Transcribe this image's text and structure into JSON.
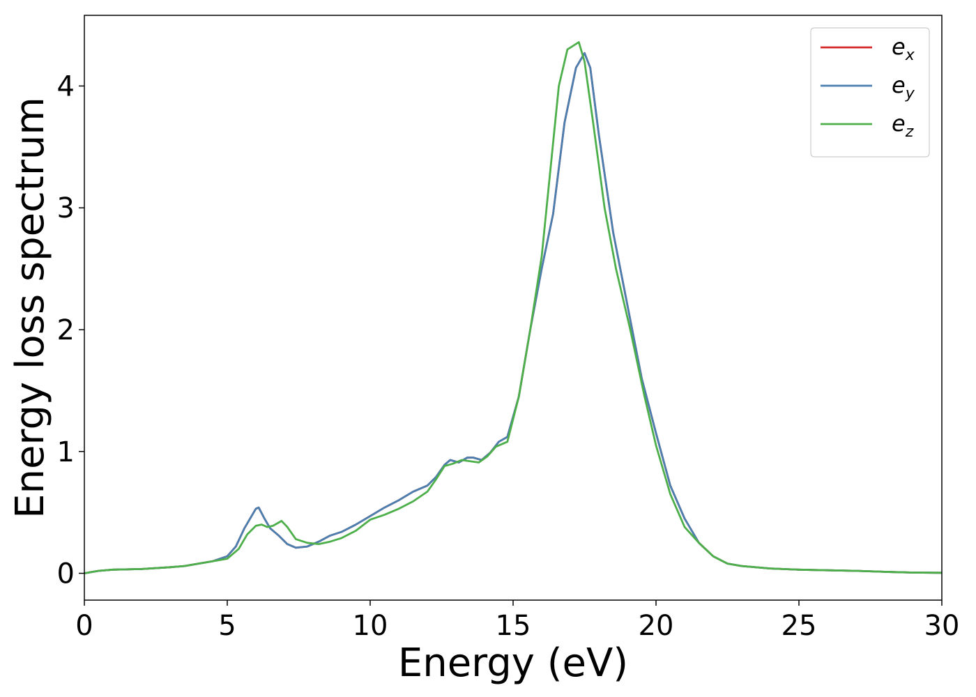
{
  "chart_data": {
    "type": "line",
    "xlabel": "Energy (eV)",
    "ylabel": "Energy loss spectrum",
    "xlim": [
      0,
      30
    ],
    "ylim": [
      -0.22,
      4.58
    ],
    "xticks": [
      0,
      5,
      10,
      15,
      20,
      25,
      30
    ],
    "yticks": [
      0,
      1,
      2,
      3,
      4
    ],
    "grid": false,
    "legend": "top-right",
    "series": [
      {
        "name": "e_x",
        "label_base": "e",
        "label_sub": "x",
        "color": "#d62728",
        "points": [
          [
            0,
            0
          ],
          [
            0.5,
            0.02
          ],
          [
            1,
            0.03
          ],
          [
            2,
            0.035
          ],
          [
            3,
            0.05
          ],
          [
            3.5,
            0.06
          ],
          [
            4,
            0.08
          ],
          [
            4.5,
            0.1
          ],
          [
            5,
            0.14
          ],
          [
            5.3,
            0.22
          ],
          [
            5.6,
            0.37
          ],
          [
            6.0,
            0.53
          ],
          [
            6.1,
            0.54
          ],
          [
            6.3,
            0.45
          ],
          [
            6.5,
            0.37
          ],
          [
            6.8,
            0.31
          ],
          [
            7.1,
            0.24
          ],
          [
            7.4,
            0.21
          ],
          [
            7.8,
            0.22
          ],
          [
            8.2,
            0.26
          ],
          [
            8.6,
            0.31
          ],
          [
            9.0,
            0.34
          ],
          [
            9.5,
            0.4
          ],
          [
            10,
            0.47
          ],
          [
            10.5,
            0.54
          ],
          [
            11,
            0.6
          ],
          [
            11.5,
            0.67
          ],
          [
            12,
            0.72
          ],
          [
            12.3,
            0.79
          ],
          [
            12.6,
            0.89
          ],
          [
            12.8,
            0.93
          ],
          [
            13.1,
            0.91
          ],
          [
            13.4,
            0.95
          ],
          [
            13.6,
            0.95
          ],
          [
            13.9,
            0.93
          ],
          [
            14.2,
            0.99
          ],
          [
            14.5,
            1.08
          ],
          [
            14.8,
            1.12
          ],
          [
            15.2,
            1.45
          ],
          [
            15.6,
            2.0
          ],
          [
            16.0,
            2.5
          ],
          [
            16.4,
            2.95
          ],
          [
            16.8,
            3.7
          ],
          [
            17.2,
            4.15
          ],
          [
            17.5,
            4.27
          ],
          [
            17.7,
            4.15
          ],
          [
            18.0,
            3.6
          ],
          [
            18.5,
            2.8
          ],
          [
            19.0,
            2.2
          ],
          [
            19.5,
            1.6
          ],
          [
            20.0,
            1.15
          ],
          [
            20.5,
            0.72
          ],
          [
            21.0,
            0.45
          ],
          [
            21.5,
            0.25
          ],
          [
            22.0,
            0.14
          ],
          [
            22.5,
            0.08
          ],
          [
            23,
            0.06
          ],
          [
            24,
            0.04
          ],
          [
            25,
            0.03
          ],
          [
            26,
            0.025
          ],
          [
            27,
            0.02
          ],
          [
            28,
            0.012
          ],
          [
            29,
            0.006
          ],
          [
            30,
            0.004
          ]
        ]
      },
      {
        "name": "e_y",
        "label_base": "e",
        "label_sub": "y",
        "color": "#4a7fb0",
        "points": [
          [
            0,
            0
          ],
          [
            0.5,
            0.02
          ],
          [
            1,
            0.03
          ],
          [
            2,
            0.035
          ],
          [
            3,
            0.05
          ],
          [
            3.5,
            0.06
          ],
          [
            4,
            0.08
          ],
          [
            4.5,
            0.1
          ],
          [
            5,
            0.14
          ],
          [
            5.3,
            0.22
          ],
          [
            5.6,
            0.37
          ],
          [
            6.0,
            0.53
          ],
          [
            6.1,
            0.54
          ],
          [
            6.3,
            0.45
          ],
          [
            6.5,
            0.37
          ],
          [
            6.8,
            0.31
          ],
          [
            7.1,
            0.24
          ],
          [
            7.4,
            0.21
          ],
          [
            7.8,
            0.22
          ],
          [
            8.2,
            0.26
          ],
          [
            8.6,
            0.31
          ],
          [
            9.0,
            0.34
          ],
          [
            9.5,
            0.4
          ],
          [
            10,
            0.47
          ],
          [
            10.5,
            0.54
          ],
          [
            11,
            0.6
          ],
          [
            11.5,
            0.67
          ],
          [
            12,
            0.72
          ],
          [
            12.3,
            0.79
          ],
          [
            12.6,
            0.89
          ],
          [
            12.8,
            0.93
          ],
          [
            13.1,
            0.91
          ],
          [
            13.4,
            0.95
          ],
          [
            13.6,
            0.95
          ],
          [
            13.9,
            0.93
          ],
          [
            14.2,
            0.99
          ],
          [
            14.5,
            1.08
          ],
          [
            14.8,
            1.12
          ],
          [
            15.2,
            1.45
          ],
          [
            15.6,
            2.0
          ],
          [
            16.0,
            2.5
          ],
          [
            16.4,
            2.95
          ],
          [
            16.8,
            3.7
          ],
          [
            17.2,
            4.15
          ],
          [
            17.5,
            4.27
          ],
          [
            17.7,
            4.15
          ],
          [
            18.0,
            3.6
          ],
          [
            18.5,
            2.8
          ],
          [
            19.0,
            2.2
          ],
          [
            19.5,
            1.6
          ],
          [
            20.0,
            1.15
          ],
          [
            20.5,
            0.72
          ],
          [
            21.0,
            0.45
          ],
          [
            21.5,
            0.25
          ],
          [
            22.0,
            0.14
          ],
          [
            22.5,
            0.08
          ],
          [
            23,
            0.06
          ],
          [
            24,
            0.04
          ],
          [
            25,
            0.03
          ],
          [
            26,
            0.025
          ],
          [
            27,
            0.02
          ],
          [
            28,
            0.012
          ],
          [
            29,
            0.006
          ],
          [
            30,
            0.004
          ]
        ]
      },
      {
        "name": "e_z",
        "label_base": "e",
        "label_sub": "z",
        "color": "#4daf4a",
        "points": [
          [
            0,
            0
          ],
          [
            0.5,
            0.02
          ],
          [
            1,
            0.03
          ],
          [
            2,
            0.035
          ],
          [
            3,
            0.05
          ],
          [
            3.5,
            0.06
          ],
          [
            4,
            0.08
          ],
          [
            4.5,
            0.1
          ],
          [
            5,
            0.12
          ],
          [
            5.4,
            0.2
          ],
          [
            5.7,
            0.32
          ],
          [
            6.0,
            0.39
          ],
          [
            6.2,
            0.4
          ],
          [
            6.4,
            0.38
          ],
          [
            6.6,
            0.39
          ],
          [
            6.9,
            0.43
          ],
          [
            7.1,
            0.38
          ],
          [
            7.4,
            0.28
          ],
          [
            7.8,
            0.25
          ],
          [
            8.2,
            0.24
          ],
          [
            8.6,
            0.26
          ],
          [
            9.0,
            0.29
          ],
          [
            9.5,
            0.35
          ],
          [
            10,
            0.44
          ],
          [
            10.5,
            0.48
          ],
          [
            11,
            0.53
          ],
          [
            11.5,
            0.59
          ],
          [
            12,
            0.67
          ],
          [
            12.3,
            0.77
          ],
          [
            12.6,
            0.88
          ],
          [
            12.9,
            0.9
          ],
          [
            13.2,
            0.93
          ],
          [
            13.5,
            0.92
          ],
          [
            13.8,
            0.91
          ],
          [
            14.1,
            0.96
          ],
          [
            14.4,
            1.04
          ],
          [
            14.8,
            1.08
          ],
          [
            15.2,
            1.45
          ],
          [
            15.6,
            2.0
          ],
          [
            16.0,
            2.6
          ],
          [
            16.3,
            3.3
          ],
          [
            16.6,
            4.0
          ],
          [
            16.9,
            4.3
          ],
          [
            17.3,
            4.36
          ],
          [
            17.5,
            4.2
          ],
          [
            17.8,
            3.7
          ],
          [
            18.2,
            3.0
          ],
          [
            18.6,
            2.5
          ],
          [
            19.1,
            2.0
          ],
          [
            19.6,
            1.45
          ],
          [
            20.0,
            1.05
          ],
          [
            20.5,
            0.65
          ],
          [
            21.0,
            0.38
          ],
          [
            21.5,
            0.25
          ],
          [
            22.0,
            0.14
          ],
          [
            22.5,
            0.08
          ],
          [
            23,
            0.06
          ],
          [
            24,
            0.04
          ],
          [
            25,
            0.03
          ],
          [
            26,
            0.025
          ],
          [
            27,
            0.02
          ],
          [
            28,
            0.012
          ],
          [
            29,
            0.006
          ],
          [
            30,
            0.004
          ]
        ]
      }
    ]
  }
}
